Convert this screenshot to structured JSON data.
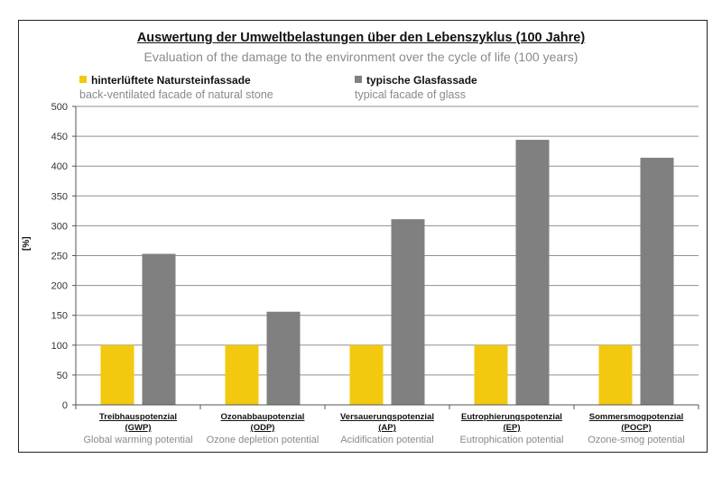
{
  "chart_data": {
    "type": "bar",
    "title": "Auswertung der Umweltbelastungen über den Lebenszyklus  (100 Jahre)",
    "subtitle": "Evaluation of the damage to the environment over the cycle of life (100 years)",
    "ylabel": "[%]",
    "ylim": [
      0,
      500
    ],
    "yticks": [
      "0",
      "50",
      "100",
      "150",
      "200",
      "250",
      "300",
      "350",
      "400",
      "450",
      "500"
    ],
    "grid": true,
    "legend_position": "top",
    "categories": [
      {
        "label": "Treibhauspotenzial\n(GWP)",
        "sublabel": "Global warming potential"
      },
      {
        "label": "Ozonabbaupotenzial\n(ODP)",
        "sublabel": "Ozone depletion potential"
      },
      {
        "label": "Versauerungspotenzial\n(AP)",
        "sublabel": "Acidification potential"
      },
      {
        "label": "Eutrophierungspotenzial\n(EP)",
        "sublabel": "Eutrophication potential"
      },
      {
        "label": "Sommersmogpotenzial\n(POCP)",
        "sublabel": "Ozone-smog potential"
      }
    ],
    "series": [
      {
        "name": "hinterlüftete Natursteinfassade",
        "subname": "back-ventilated facade of natural stone",
        "color": "#f2c90f",
        "values": [
          100,
          100,
          100,
          100,
          100
        ]
      },
      {
        "name": "typische Glasfassade",
        "subname": "typical facade of glass",
        "color": "#808080",
        "values": [
          253,
          156,
          311,
          444,
          414
        ]
      }
    ]
  }
}
